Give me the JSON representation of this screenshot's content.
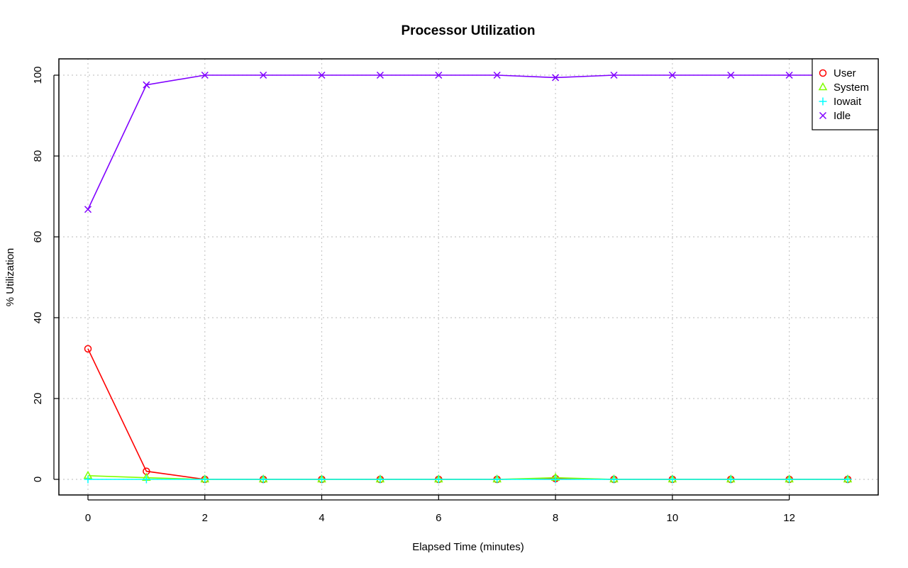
{
  "chart_data": {
    "type": "line",
    "title": "Processor Utilization",
    "xlabel": "Elapsed Time (minutes)",
    "ylabel": "% Utilization",
    "xlim": [
      0,
      13
    ],
    "ylim": [
      0,
      100
    ],
    "x_ticks": [
      0,
      2,
      4,
      6,
      8,
      10,
      12
    ],
    "y_ticks": [
      0,
      20,
      40,
      60,
      80,
      100
    ],
    "grid": true,
    "legend_position": "top-right",
    "x": [
      0,
      1,
      2,
      3,
      4,
      5,
      6,
      7,
      8,
      9,
      10,
      11,
      12,
      13
    ],
    "series": [
      {
        "name": "User",
        "color": "#ff0000",
        "marker": "circle",
        "values": [
          32.3,
          2.0,
          0,
          0,
          0,
          0,
          0,
          0,
          0.2,
          0,
          0,
          0,
          0,
          0
        ]
      },
      {
        "name": "System",
        "color": "#80ff00",
        "marker": "triangle",
        "values": [
          0.9,
          0.4,
          0,
          0,
          0,
          0,
          0,
          0,
          0.4,
          0,
          0,
          0,
          0,
          0
        ]
      },
      {
        "name": "Iowait",
        "color": "#00ffff",
        "marker": "plus",
        "values": [
          0,
          0,
          0,
          0,
          0,
          0,
          0,
          0,
          0,
          0,
          0,
          0,
          0,
          0
        ]
      },
      {
        "name": "Idle",
        "color": "#8000ff",
        "marker": "cross",
        "values": [
          66.8,
          97.6,
          100,
          100,
          100,
          100,
          100,
          100,
          99.4,
          100,
          100,
          100,
          100,
          100
        ]
      }
    ]
  }
}
